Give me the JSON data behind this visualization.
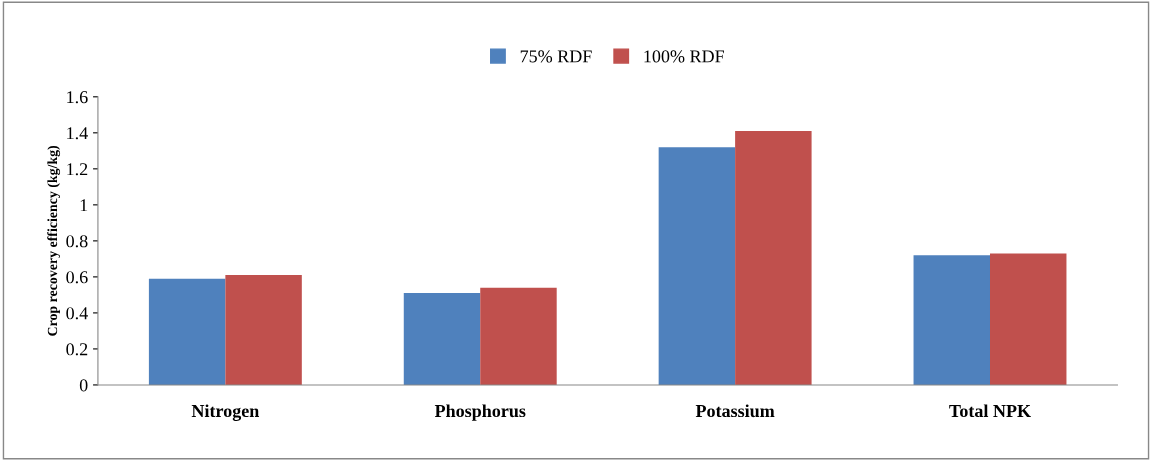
{
  "chart_data": {
    "type": "bar",
    "ylabel": "Crop recovery efficiency (kg/kg)",
    "categories": [
      "Nitrogen",
      "Phosphorus",
      "Potassium",
      "Total NPK"
    ],
    "series": [
      {
        "name": "75% RDF",
        "color": "#4f81bd",
        "values": [
          0.59,
          0.51,
          1.32,
          0.72
        ]
      },
      {
        "name": "100% RDF",
        "color": "#c0504d",
        "values": [
          0.61,
          0.54,
          1.41,
          0.73
        ]
      }
    ],
    "ylim": [
      0,
      1.6
    ],
    "yticks": [
      0,
      0.2,
      0.4,
      0.6,
      0.8,
      "1",
      1.2,
      1.4,
      1.6
    ],
    "grid": false,
    "legend": "top"
  }
}
